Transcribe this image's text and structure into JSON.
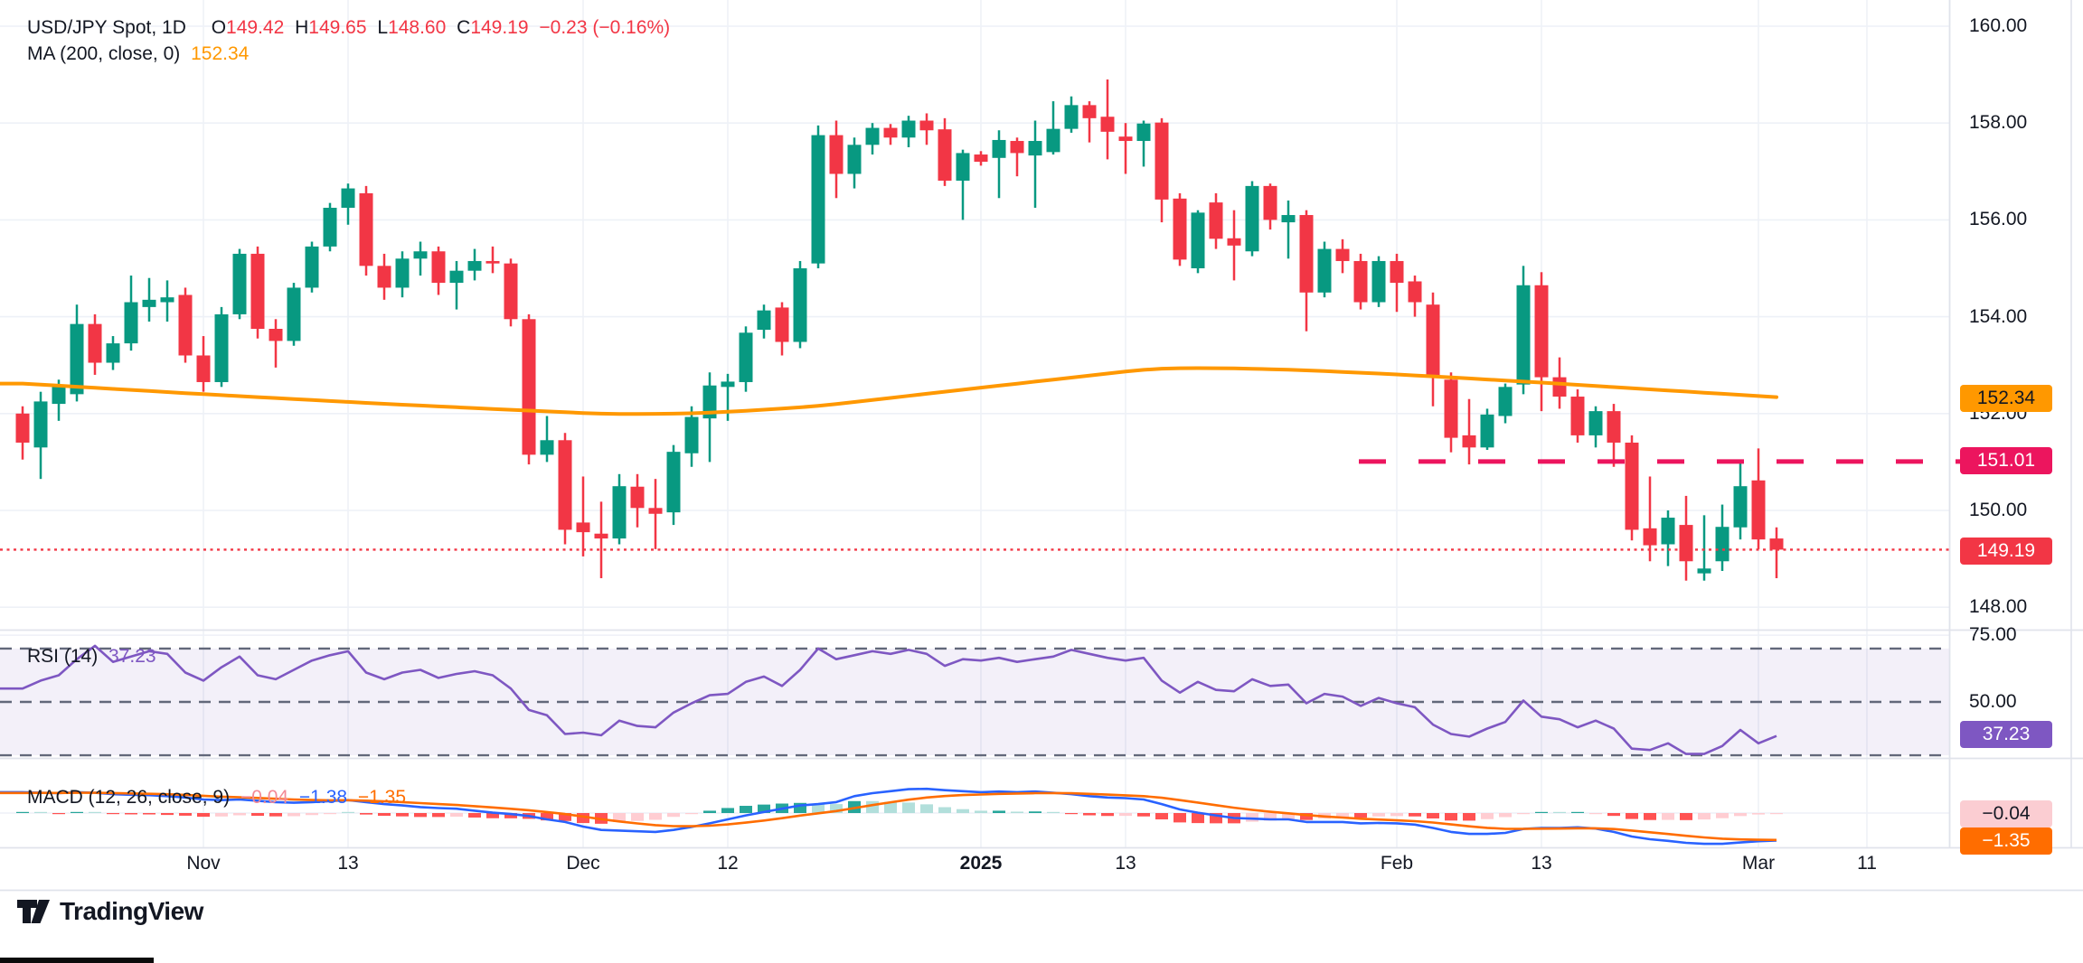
{
  "legend": {
    "symbol": "USD/JPY Spot, 1D",
    "o_label": "O",
    "o": "149.42",
    "h_label": "H",
    "h": "149.65",
    "l_label": "L",
    "l": "148.60",
    "c_label": "C",
    "c": "149.19",
    "change": "−0.23 (−0.16%)",
    "ma_label": "MA (200, close, 0)",
    "ma_value": "152.34"
  },
  "rsi_legend": {
    "label": "RSI (14)",
    "value": "37.23"
  },
  "macd_legend": {
    "label": "MACD (12, 26, close, 9)",
    "hist": "−0.04",
    "macd": "−1.38",
    "signal": "−1.35"
  },
  "badges": {
    "ma": "152.34",
    "resistance": "151.01",
    "close": "149.19",
    "rsi": "37.23",
    "macd_hist": "−0.04",
    "macd_signal": "−1.35"
  },
  "footer": {
    "brand": "TradingView"
  },
  "colors": {
    "up": "#089981",
    "down": "#f23645",
    "ma": "#ff9800",
    "resistance": "#ec155e",
    "close_line": "#f23645",
    "rsi": "#7e57c2",
    "rsi_band_fill": "rgba(126,87,194,0.09)",
    "band_dash": "#62687a",
    "macd_line": "#2962ff",
    "signal_line": "#ff6d00",
    "hist_grow_above": "#26a69a",
    "hist_fall_above": "#b2dfdb",
    "hist_fall_below": "#ff5252",
    "hist_grow_below": "#ffcdd2",
    "grid": "#eef1f7",
    "divider": "#e0e3eb",
    "axis_text": "#131722"
  },
  "chart_data": {
    "type": "candlestick-with-indicators",
    "symbol": "USD/JPY Spot",
    "timeframe": "1D",
    "last": {
      "open": 149.42,
      "high": 149.65,
      "low": 148.6,
      "close": 149.19,
      "change": -0.23,
      "change_pct": -0.16
    },
    "levels": {
      "resistance": 151.01,
      "last_close": 149.19,
      "ma200_last": 152.34,
      "rsi_last": 37.23
    },
    "y_axis": {
      "price_ticks": [
        160,
        158,
        156,
        154,
        152,
        150,
        148
      ],
      "rsi_ticks": [
        75,
        50
      ],
      "price_range_top": 160.5,
      "price_range_bottom": 147.5
    },
    "rsi_bands": [
      70,
      50,
      30
    ],
    "x_axis": {
      "labels": [
        {
          "t": "Nov",
          "i": 10,
          "bold": false
        },
        {
          "t": "13",
          "i": 18,
          "bold": false
        },
        {
          "t": "Dec",
          "i": 31,
          "bold": false
        },
        {
          "t": "12",
          "i": 39,
          "bold": false
        },
        {
          "t": "2025",
          "i": 53,
          "bold": true
        },
        {
          "t": "13",
          "i": 61,
          "bold": false
        },
        {
          "t": "Feb",
          "i": 76,
          "bold": false
        },
        {
          "t": "13",
          "i": 84,
          "bold": false
        },
        {
          "t": "Mar",
          "i": 96,
          "bold": false
        },
        {
          "t": "11",
          "i": 102,
          "bold": false
        }
      ]
    },
    "ohlc": [
      [
        152.0,
        152.15,
        151.05,
        151.4
      ],
      [
        151.3,
        152.45,
        150.65,
        152.25
      ],
      [
        152.2,
        152.7,
        151.85,
        152.55
      ],
      [
        152.4,
        154.25,
        152.25,
        153.85
      ],
      [
        153.85,
        154.05,
        152.8,
        153.05
      ],
      [
        153.05,
        153.6,
        152.9,
        153.45
      ],
      [
        153.45,
        154.85,
        153.3,
        154.3
      ],
      [
        154.2,
        154.8,
        153.9,
        154.35
      ],
      [
        154.3,
        154.75,
        153.9,
        154.4
      ],
      [
        154.45,
        154.6,
        153.05,
        153.2
      ],
      [
        153.2,
        153.6,
        152.45,
        152.65
      ],
      [
        152.65,
        154.2,
        152.55,
        154.05
      ],
      [
        154.05,
        155.4,
        153.95,
        155.3
      ],
      [
        155.3,
        155.45,
        153.55,
        153.75
      ],
      [
        153.75,
        153.95,
        152.95,
        153.5
      ],
      [
        153.5,
        154.7,
        153.4,
        154.6
      ],
      [
        154.6,
        155.55,
        154.5,
        155.45
      ],
      [
        155.45,
        156.35,
        155.35,
        156.25
      ],
      [
        156.25,
        156.75,
        155.9,
        156.65
      ],
      [
        156.55,
        156.7,
        154.85,
        155.05
      ],
      [
        155.05,
        155.3,
        154.35,
        154.6
      ],
      [
        154.6,
        155.35,
        154.4,
        155.2
      ],
      [
        155.2,
        155.55,
        154.85,
        155.35
      ],
      [
        155.35,
        155.45,
        154.45,
        154.7
      ],
      [
        154.7,
        155.15,
        154.15,
        154.95
      ],
      [
        154.95,
        155.4,
        154.75,
        155.15
      ],
      [
        155.15,
        155.45,
        154.9,
        155.1
      ],
      [
        155.1,
        155.2,
        153.8,
        153.95
      ],
      [
        153.95,
        154.05,
        150.95,
        151.15
      ],
      [
        151.15,
        151.95,
        151.0,
        151.45
      ],
      [
        151.45,
        151.6,
        149.3,
        149.6
      ],
      [
        149.75,
        150.7,
        149.05,
        149.55
      ],
      [
        149.52,
        150.18,
        148.6,
        149.42
      ],
      [
        149.42,
        150.75,
        149.3,
        150.5
      ],
      [
        150.49,
        150.75,
        149.65,
        150.05
      ],
      [
        150.05,
        150.65,
        149.2,
        149.93
      ],
      [
        149.96,
        151.35,
        149.7,
        151.21
      ],
      [
        151.18,
        152.15,
        150.9,
        151.93
      ],
      [
        151.9,
        152.85,
        151.0,
        152.58
      ],
      [
        152.55,
        152.82,
        151.85,
        152.66
      ],
      [
        152.65,
        153.8,
        152.45,
        153.67
      ],
      [
        153.73,
        154.25,
        153.55,
        154.13
      ],
      [
        154.19,
        154.3,
        153.2,
        153.48
      ],
      [
        153.48,
        155.15,
        153.35,
        155.0
      ],
      [
        155.1,
        157.95,
        155.0,
        157.75
      ],
      [
        157.75,
        158.05,
        156.45,
        156.95
      ],
      [
        156.95,
        157.7,
        156.65,
        157.55
      ],
      [
        157.55,
        158.0,
        157.35,
        157.9
      ],
      [
        157.9,
        157.98,
        157.55,
        157.7
      ],
      [
        157.7,
        158.15,
        157.5,
        158.05
      ],
      [
        158.05,
        158.2,
        157.55,
        157.85
      ],
      [
        157.87,
        158.1,
        156.7,
        156.81
      ],
      [
        156.81,
        157.45,
        156.0,
        157.38
      ],
      [
        157.35,
        157.42,
        157.12,
        157.2
      ],
      [
        157.28,
        157.85,
        156.45,
        157.65
      ],
      [
        157.63,
        157.7,
        156.9,
        157.38
      ],
      [
        157.33,
        158.05,
        156.25,
        157.63
      ],
      [
        157.4,
        158.45,
        157.35,
        157.88
      ],
      [
        157.88,
        158.55,
        157.8,
        158.37
      ],
      [
        158.37,
        158.45,
        157.6,
        158.1
      ],
      [
        158.13,
        158.9,
        157.25,
        157.82
      ],
      [
        157.72,
        158.0,
        156.95,
        157.63
      ],
      [
        157.63,
        158.05,
        157.1,
        157.99
      ],
      [
        158.01,
        158.1,
        155.95,
        156.42
      ],
      [
        156.44,
        156.55,
        155.05,
        155.18
      ],
      [
        155.0,
        156.2,
        154.9,
        156.15
      ],
      [
        156.36,
        156.55,
        155.4,
        155.61
      ],
      [
        155.62,
        156.2,
        154.75,
        155.47
      ],
      [
        155.35,
        156.8,
        155.25,
        156.7
      ],
      [
        156.7,
        156.75,
        155.8,
        156.0
      ],
      [
        155.95,
        156.4,
        155.2,
        156.1
      ],
      [
        156.1,
        156.2,
        153.7,
        154.5
      ],
      [
        154.5,
        155.55,
        154.4,
        155.4
      ],
      [
        155.4,
        155.6,
        154.9,
        155.15
      ],
      [
        155.15,
        155.3,
        154.15,
        154.3
      ],
      [
        154.3,
        155.25,
        154.2,
        155.15
      ],
      [
        155.15,
        155.3,
        154.1,
        154.7
      ],
      [
        154.73,
        154.85,
        154.0,
        154.3
      ],
      [
        154.25,
        154.5,
        152.15,
        152.75
      ],
      [
        152.7,
        152.85,
        151.2,
        151.5
      ],
      [
        151.55,
        152.3,
        150.95,
        151.3
      ],
      [
        151.3,
        152.1,
        151.25,
        151.98
      ],
      [
        151.95,
        152.62,
        151.8,
        152.55
      ],
      [
        152.6,
        155.05,
        152.4,
        154.65
      ],
      [
        154.65,
        154.92,
        152.05,
        152.75
      ],
      [
        152.75,
        153.16,
        152.1,
        152.35
      ],
      [
        152.35,
        152.5,
        151.4,
        151.55
      ],
      [
        151.55,
        152.15,
        151.3,
        152.05
      ],
      [
        152.05,
        152.2,
        150.9,
        151.4
      ],
      [
        151.4,
        151.55,
        149.38,
        149.6
      ],
      [
        149.63,
        150.7,
        148.95,
        149.28
      ],
      [
        149.3,
        150.0,
        148.85,
        149.85
      ],
      [
        149.7,
        150.3,
        148.55,
        148.95
      ],
      [
        148.7,
        149.9,
        148.55,
        148.8
      ],
      [
        148.95,
        150.12,
        148.75,
        149.66
      ],
      [
        149.65,
        151.0,
        149.4,
        150.5
      ],
      [
        150.62,
        151.28,
        149.2,
        149.4
      ],
      [
        149.42,
        149.65,
        148.6,
        149.19
      ]
    ],
    "ma200_anchors": [
      [
        0,
        152.62
      ],
      [
        10,
        152.4
      ],
      [
        20,
        152.2
      ],
      [
        28,
        152.06
      ],
      [
        33,
        151.98
      ],
      [
        38,
        152.01
      ],
      [
        44,
        152.15
      ],
      [
        50,
        152.41
      ],
      [
        56,
        152.66
      ],
      [
        63,
        152.95
      ],
      [
        68,
        152.93
      ],
      [
        72,
        152.88
      ],
      [
        77,
        152.79
      ],
      [
        84,
        152.64
      ],
      [
        90,
        152.5
      ],
      [
        97,
        152.34
      ]
    ],
    "rsi14": [
      55,
      58,
      60,
      66,
      71,
      65,
      67,
      69,
      68,
      61,
      58,
      63,
      67,
      60,
      58.5,
      62,
      65.5,
      67.5,
      69,
      61,
      58.5,
      61,
      62,
      59,
      60.5,
      61.5,
      60,
      55,
      47,
      45,
      38,
      38.5,
      37.5,
      43,
      41,
      40.5,
      46,
      49.5,
      52.5,
      53,
      57.5,
      59.5,
      56,
      62,
      70,
      66,
      67.5,
      69,
      68,
      69.5,
      68,
      63.5,
      66,
      65.5,
      66.5,
      65,
      66,
      67,
      69.5,
      68,
      66.5,
      65.5,
      66.5,
      58,
      53.5,
      57.5,
      54.5,
      54,
      58.5,
      56,
      56.5,
      49.5,
      53,
      52,
      48.5,
      51.5,
      49.5,
      48,
      41.5,
      38,
      37,
      40,
      42.5,
      50.5,
      44.5,
      43.5,
      40.5,
      43,
      40,
      32.5,
      32,
      34.5,
      30.5,
      30.5,
      33.5,
      39.5,
      34.5,
      37.23
    ],
    "macd": [
      1.05,
      1.02,
      1.0,
      1.05,
      1.02,
      0.95,
      0.92,
      0.9,
      0.85,
      0.78,
      0.68,
      0.65,
      0.68,
      0.62,
      0.55,
      0.52,
      0.55,
      0.6,
      0.65,
      0.55,
      0.45,
      0.38,
      0.3,
      0.25,
      0.22,
      0.12,
      0.02,
      -0.05,
      -0.15,
      -0.32,
      -0.45,
      -0.68,
      -0.85,
      -0.88,
      -0.92,
      -0.95,
      -0.85,
      -0.7,
      -0.52,
      -0.32,
      -0.12,
      0.05,
      0.22,
      0.38,
      0.45,
      0.55,
      0.85,
      1.0,
      1.1,
      1.2,
      1.22,
      1.15,
      1.1,
      1.05,
      1.08,
      1.05,
      1.08,
      1.02,
      0.95,
      0.85,
      0.78,
      0.75,
      0.68,
      0.45,
      0.18,
      0.02,
      -0.12,
      -0.25,
      -0.28,
      -0.32,
      -0.32,
      -0.45,
      -0.45,
      -0.45,
      -0.52,
      -0.5,
      -0.52,
      -0.58,
      -0.75,
      -0.95,
      -1.05,
      -1.05,
      -1.0,
      -0.8,
      -0.75,
      -0.75,
      -0.72,
      -0.78,
      -0.95,
      -1.18,
      -1.32,
      -1.4,
      -1.5,
      -1.55,
      -1.55,
      -1.48,
      -1.42,
      -1.38
    ]
  }
}
